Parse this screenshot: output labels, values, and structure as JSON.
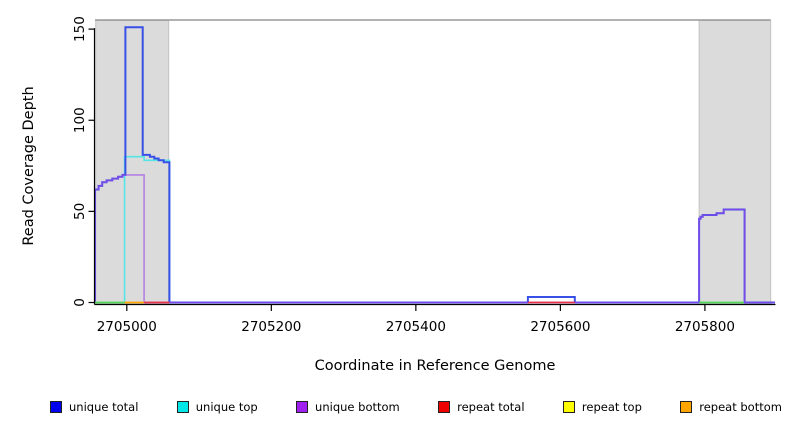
{
  "chart_data": {
    "type": "line",
    "title": "",
    "xlabel": "Coordinate in Reference Genome",
    "ylabel": "Read Coverage Depth",
    "xlim": [
      2704956,
      2705897
    ],
    "ylim": [
      0,
      155
    ],
    "xticks": [
      2705000,
      2705200,
      2705400,
      2705600,
      2705800
    ],
    "yticks": [
      0,
      50,
      100,
      150
    ],
    "grid": false,
    "legend_position": "bottom",
    "colors": {
      "region_fill": "#DBDBDB",
      "region_border": "#C2C2C2",
      "top_border": "#999999",
      "axis": "#000000"
    },
    "shaded_regions": [
      {
        "name": "repeat-region-left",
        "from": 2704957,
        "to": 2705058
      },
      {
        "name": "repeat-region-right",
        "from": 2705792,
        "to": 2705891
      }
    ],
    "series": [
      {
        "id": "unique-top",
        "name": "unique top",
        "color": "#55E5E5",
        "width": 1.6,
        "opacity": 1,
        "start": 0,
        "changes": [
          [
            2704997,
            80
          ],
          [
            2705024,
            78
          ],
          [
            2705059,
            0
          ]
        ]
      },
      {
        "id": "unique-total",
        "name": "unique total",
        "color": "#3850E6",
        "width": 2,
        "opacity": 1,
        "start": 0,
        "changes": [
          [
            2704956,
            62
          ],
          [
            2704961,
            64
          ],
          [
            2704966,
            66
          ],
          [
            2704972,
            67
          ],
          [
            2704980,
            68
          ],
          [
            2704988,
            69
          ],
          [
            2704994,
            70
          ],
          [
            2704998,
            151
          ],
          [
            2705022,
            81
          ],
          [
            2705032,
            80
          ],
          [
            2705038,
            79
          ],
          [
            2705044,
            78
          ],
          [
            2705051,
            77
          ],
          [
            2705059,
            0
          ],
          [
            2705555,
            3
          ],
          [
            2705620,
            0
          ],
          [
            2705792,
            46
          ],
          [
            2705794,
            47
          ],
          [
            2705797,
            48
          ],
          [
            2705816,
            49
          ],
          [
            2705826,
            51
          ],
          [
            2705855,
            0
          ]
        ]
      },
      {
        "id": "unique-bottom",
        "name": "unique bottom",
        "color": "#A048E8",
        "width": 1.6,
        "opacity": 0.62,
        "start": 0,
        "changes": [
          [
            2704956,
            62
          ],
          [
            2704961,
            64
          ],
          [
            2704966,
            66
          ],
          [
            2704972,
            67
          ],
          [
            2704980,
            68
          ],
          [
            2704988,
            69
          ],
          [
            2704994,
            70
          ],
          [
            2705024,
            0
          ],
          [
            2705792,
            46
          ],
          [
            2705794,
            47
          ],
          [
            2705797,
            48
          ],
          [
            2705816,
            49
          ],
          [
            2705826,
            51
          ],
          [
            2705855,
            0
          ]
        ]
      }
    ],
    "zero_segments": [
      {
        "name": "overlap-green-left",
        "color": "#55D655",
        "from": 2704956,
        "to": 2704997
      },
      {
        "name": "repeat-bottom-zero",
        "color": "#FFA500",
        "from": 2704997,
        "to": 2705024
      },
      {
        "name": "repeat-total-zero-left",
        "color": "#E8304A",
        "from": 2705024,
        "to": 2705059
      },
      {
        "name": "repeat-total-zero-mid",
        "color": "#E8304A",
        "from": 2705555,
        "to": 2705620
      },
      {
        "name": "overlap-green-right",
        "color": "#55D655",
        "from": 2705792,
        "to": 2705854
      }
    ]
  },
  "legend": {
    "items": [
      {
        "label": "unique total",
        "color": "#0000EE"
      },
      {
        "label": "unique top",
        "color": "#00E5E5"
      },
      {
        "label": "unique bottom",
        "color": "#A020F0"
      },
      {
        "label": "repeat total",
        "color": "#EE0000"
      },
      {
        "label": "repeat top",
        "color": "#FFFF00"
      },
      {
        "label": "repeat bottom",
        "color": "#FFA500"
      }
    ]
  }
}
